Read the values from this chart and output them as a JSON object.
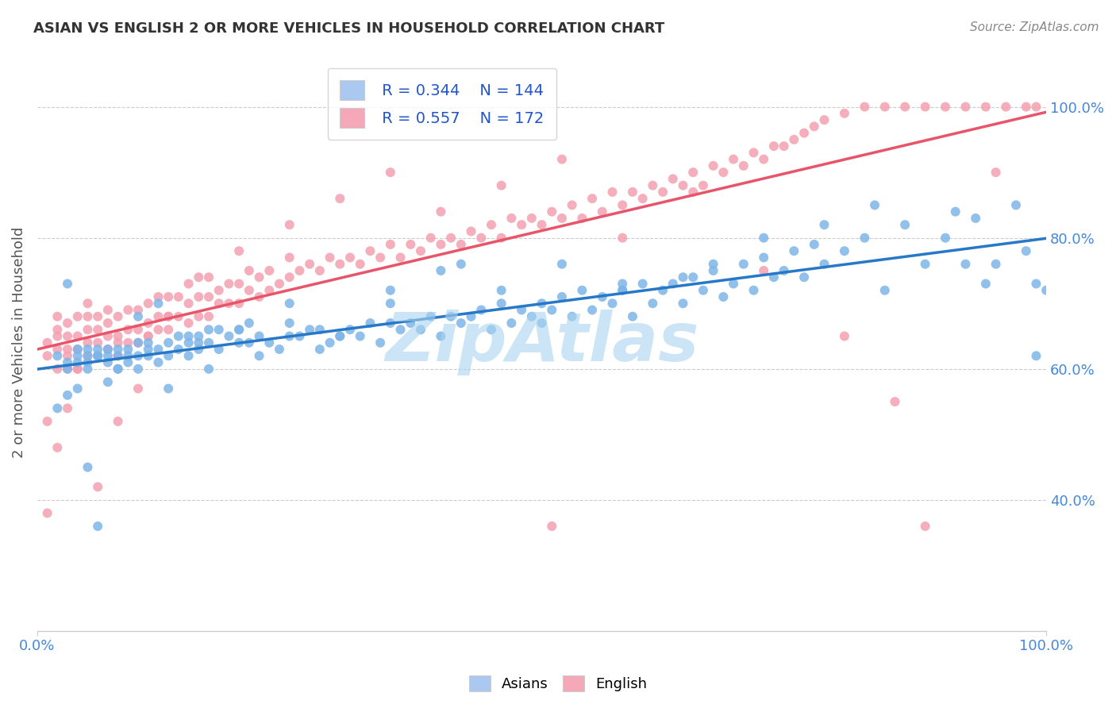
{
  "title": "ASIAN VS ENGLISH 2 OR MORE VEHICLES IN HOUSEHOLD CORRELATION CHART",
  "source": "Source: ZipAtlas.com",
  "ylabel": "2 or more Vehicles in Household",
  "xlim": [
    0.0,
    1.0
  ],
  "ylim": [
    0.2,
    1.08
  ],
  "yticks": [
    0.4,
    0.6,
    0.8,
    1.0
  ],
  "ytick_labels": [
    "40.0%",
    "60.0%",
    "80.0%",
    "100.0%"
  ],
  "blue_R": 0.344,
  "blue_N": 144,
  "pink_R": 0.557,
  "pink_N": 172,
  "blue_color": "#7eb5e8",
  "pink_color": "#f4a0b0",
  "blue_line_color": "#2878c8",
  "pink_line_color": "#e8556a",
  "watermark": "ZipAtlas",
  "watermark_color": "#aad4f0",
  "legend_blue_patch_color": "#aac8f0",
  "legend_pink_patch_color": "#f4a8b8",
  "title_color": "#333333",
  "axis_label_color": "#555555",
  "tick_color_right": "#4488dd",
  "background_color": "#ffffff",
  "grid_color": "#cccccc",
  "blue_scatter_x": [
    0.02,
    0.03,
    0.03,
    0.04,
    0.04,
    0.04,
    0.05,
    0.05,
    0.05,
    0.05,
    0.06,
    0.06,
    0.06,
    0.07,
    0.07,
    0.07,
    0.08,
    0.08,
    0.08,
    0.09,
    0.09,
    0.09,
    0.1,
    0.1,
    0.1,
    0.11,
    0.11,
    0.11,
    0.12,
    0.12,
    0.13,
    0.13,
    0.14,
    0.14,
    0.15,
    0.15,
    0.15,
    0.16,
    0.16,
    0.17,
    0.17,
    0.18,
    0.18,
    0.19,
    0.2,
    0.2,
    0.21,
    0.21,
    0.22,
    0.23,
    0.24,
    0.25,
    0.25,
    0.26,
    0.27,
    0.28,
    0.29,
    0.3,
    0.31,
    0.32,
    0.33,
    0.34,
    0.35,
    0.36,
    0.37,
    0.38,
    0.39,
    0.4,
    0.41,
    0.42,
    0.43,
    0.44,
    0.45,
    0.46,
    0.47,
    0.48,
    0.49,
    0.5,
    0.51,
    0.52,
    0.53,
    0.54,
    0.55,
    0.56,
    0.57,
    0.58,
    0.59,
    0.6,
    0.61,
    0.62,
    0.63,
    0.64,
    0.65,
    0.66,
    0.67,
    0.68,
    0.69,
    0.7,
    0.71,
    0.72,
    0.73,
    0.74,
    0.75,
    0.76,
    0.77,
    0.78,
    0.8,
    0.82,
    0.84,
    0.86,
    0.88,
    0.9,
    0.91,
    0.92,
    0.93,
    0.95,
    0.97,
    0.98,
    0.99,
    1.0,
    0.03,
    0.05,
    0.07,
    0.1,
    0.13,
    0.17,
    0.22,
    0.28,
    0.35,
    0.42,
    0.5,
    0.58,
    0.67,
    0.78,
    0.99,
    0.04,
    0.08,
    0.12,
    0.16,
    0.2,
    0.25,
    0.3,
    0.35,
    0.4,
    0.46,
    0.52,
    0.58,
    0.64,
    0.72,
    0.83,
    0.94,
    0.02,
    0.03,
    0.06
  ],
  "blue_scatter_y": [
    0.62,
    0.6,
    0.61,
    0.63,
    0.61,
    0.62,
    0.6,
    0.61,
    0.62,
    0.63,
    0.62,
    0.62,
    0.63,
    0.61,
    0.62,
    0.63,
    0.6,
    0.62,
    0.63,
    0.61,
    0.62,
    0.63,
    0.6,
    0.62,
    0.64,
    0.62,
    0.63,
    0.64,
    0.61,
    0.63,
    0.62,
    0.64,
    0.63,
    0.65,
    0.62,
    0.64,
    0.65,
    0.63,
    0.65,
    0.64,
    0.66,
    0.63,
    0.66,
    0.65,
    0.64,
    0.66,
    0.64,
    0.67,
    0.65,
    0.64,
    0.63,
    0.65,
    0.67,
    0.65,
    0.66,
    0.63,
    0.64,
    0.65,
    0.66,
    0.65,
    0.67,
    0.64,
    0.67,
    0.66,
    0.67,
    0.66,
    0.68,
    0.65,
    0.68,
    0.67,
    0.68,
    0.69,
    0.66,
    0.7,
    0.67,
    0.69,
    0.68,
    0.7,
    0.69,
    0.71,
    0.68,
    0.72,
    0.69,
    0.71,
    0.7,
    0.72,
    0.68,
    0.73,
    0.7,
    0.72,
    0.73,
    0.7,
    0.74,
    0.72,
    0.75,
    0.71,
    0.73,
    0.76,
    0.72,
    0.77,
    0.74,
    0.75,
    0.78,
    0.74,
    0.79,
    0.76,
    0.78,
    0.8,
    0.72,
    0.82,
    0.76,
    0.8,
    0.84,
    0.76,
    0.83,
    0.76,
    0.85,
    0.78,
    0.73,
    0.72,
    0.73,
    0.45,
    0.58,
    0.68,
    0.57,
    0.6,
    0.62,
    0.66,
    0.7,
    0.76,
    0.67,
    0.73,
    0.76,
    0.82,
    0.62,
    0.57,
    0.6,
    0.7,
    0.64,
    0.66,
    0.7,
    0.65,
    0.72,
    0.75,
    0.72,
    0.76,
    0.72,
    0.74,
    0.8,
    0.85,
    0.73,
    0.54,
    0.56,
    0.36
  ],
  "pink_scatter_x": [
    0.01,
    0.01,
    0.01,
    0.02,
    0.02,
    0.02,
    0.02,
    0.02,
    0.03,
    0.03,
    0.03,
    0.03,
    0.03,
    0.04,
    0.04,
    0.04,
    0.04,
    0.05,
    0.05,
    0.05,
    0.05,
    0.06,
    0.06,
    0.06,
    0.06,
    0.07,
    0.07,
    0.07,
    0.07,
    0.08,
    0.08,
    0.08,
    0.09,
    0.09,
    0.09,
    0.1,
    0.1,
    0.1,
    0.11,
    0.11,
    0.11,
    0.12,
    0.12,
    0.12,
    0.13,
    0.13,
    0.13,
    0.14,
    0.14,
    0.15,
    0.15,
    0.15,
    0.16,
    0.16,
    0.17,
    0.17,
    0.17,
    0.18,
    0.18,
    0.19,
    0.19,
    0.2,
    0.2,
    0.21,
    0.21,
    0.22,
    0.22,
    0.23,
    0.23,
    0.24,
    0.25,
    0.25,
    0.26,
    0.27,
    0.28,
    0.29,
    0.3,
    0.31,
    0.32,
    0.33,
    0.34,
    0.35,
    0.36,
    0.37,
    0.38,
    0.39,
    0.4,
    0.41,
    0.42,
    0.43,
    0.44,
    0.45,
    0.46,
    0.47,
    0.48,
    0.49,
    0.5,
    0.51,
    0.52,
    0.53,
    0.54,
    0.55,
    0.56,
    0.57,
    0.58,
    0.59,
    0.6,
    0.61,
    0.62,
    0.63,
    0.64,
    0.65,
    0.66,
    0.67,
    0.68,
    0.69,
    0.7,
    0.71,
    0.72,
    0.73,
    0.74,
    0.75,
    0.76,
    0.77,
    0.78,
    0.8,
    0.82,
    0.84,
    0.86,
    0.88,
    0.9,
    0.92,
    0.94,
    0.96,
    0.98,
    0.99,
    0.02,
    0.04,
    0.06,
    0.08,
    0.1,
    0.13,
    0.16,
    0.2,
    0.25,
    0.3,
    0.35,
    0.4,
    0.46,
    0.52,
    0.58,
    0.65,
    0.72,
    0.8,
    0.88,
    0.95,
    0.01,
    0.03,
    0.05,
    0.08,
    0.11,
    0.51,
    0.85
  ],
  "pink_scatter_y": [
    0.62,
    0.64,
    0.52,
    0.6,
    0.63,
    0.65,
    0.66,
    0.68,
    0.6,
    0.62,
    0.63,
    0.65,
    0.67,
    0.6,
    0.63,
    0.65,
    0.68,
    0.62,
    0.64,
    0.66,
    0.68,
    0.62,
    0.64,
    0.66,
    0.68,
    0.63,
    0.65,
    0.67,
    0.69,
    0.62,
    0.65,
    0.68,
    0.64,
    0.66,
    0.69,
    0.64,
    0.66,
    0.69,
    0.65,
    0.67,
    0.7,
    0.66,
    0.68,
    0.71,
    0.66,
    0.68,
    0.71,
    0.68,
    0.71,
    0.67,
    0.7,
    0.73,
    0.68,
    0.71,
    0.68,
    0.71,
    0.74,
    0.7,
    0.72,
    0.7,
    0.73,
    0.7,
    0.73,
    0.72,
    0.75,
    0.71,
    0.74,
    0.72,
    0.75,
    0.73,
    0.74,
    0.77,
    0.75,
    0.76,
    0.75,
    0.77,
    0.76,
    0.77,
    0.76,
    0.78,
    0.77,
    0.79,
    0.77,
    0.79,
    0.78,
    0.8,
    0.79,
    0.8,
    0.79,
    0.81,
    0.8,
    0.82,
    0.8,
    0.83,
    0.82,
    0.83,
    0.82,
    0.84,
    0.83,
    0.85,
    0.83,
    0.86,
    0.84,
    0.87,
    0.85,
    0.87,
    0.86,
    0.88,
    0.87,
    0.89,
    0.88,
    0.9,
    0.88,
    0.91,
    0.9,
    0.92,
    0.91,
    0.93,
    0.92,
    0.94,
    0.94,
    0.95,
    0.96,
    0.97,
    0.98,
    0.99,
    1.0,
    1.0,
    1.0,
    1.0,
    1.0,
    1.0,
    1.0,
    1.0,
    1.0,
    1.0,
    0.48,
    0.6,
    0.42,
    0.52,
    0.57,
    0.68,
    0.74,
    0.78,
    0.82,
    0.86,
    0.9,
    0.84,
    0.88,
    0.92,
    0.8,
    0.87,
    0.75,
    0.65,
    0.36,
    0.9,
    0.38,
    0.54,
    0.7,
    0.64,
    0.65,
    0.36,
    0.55
  ]
}
